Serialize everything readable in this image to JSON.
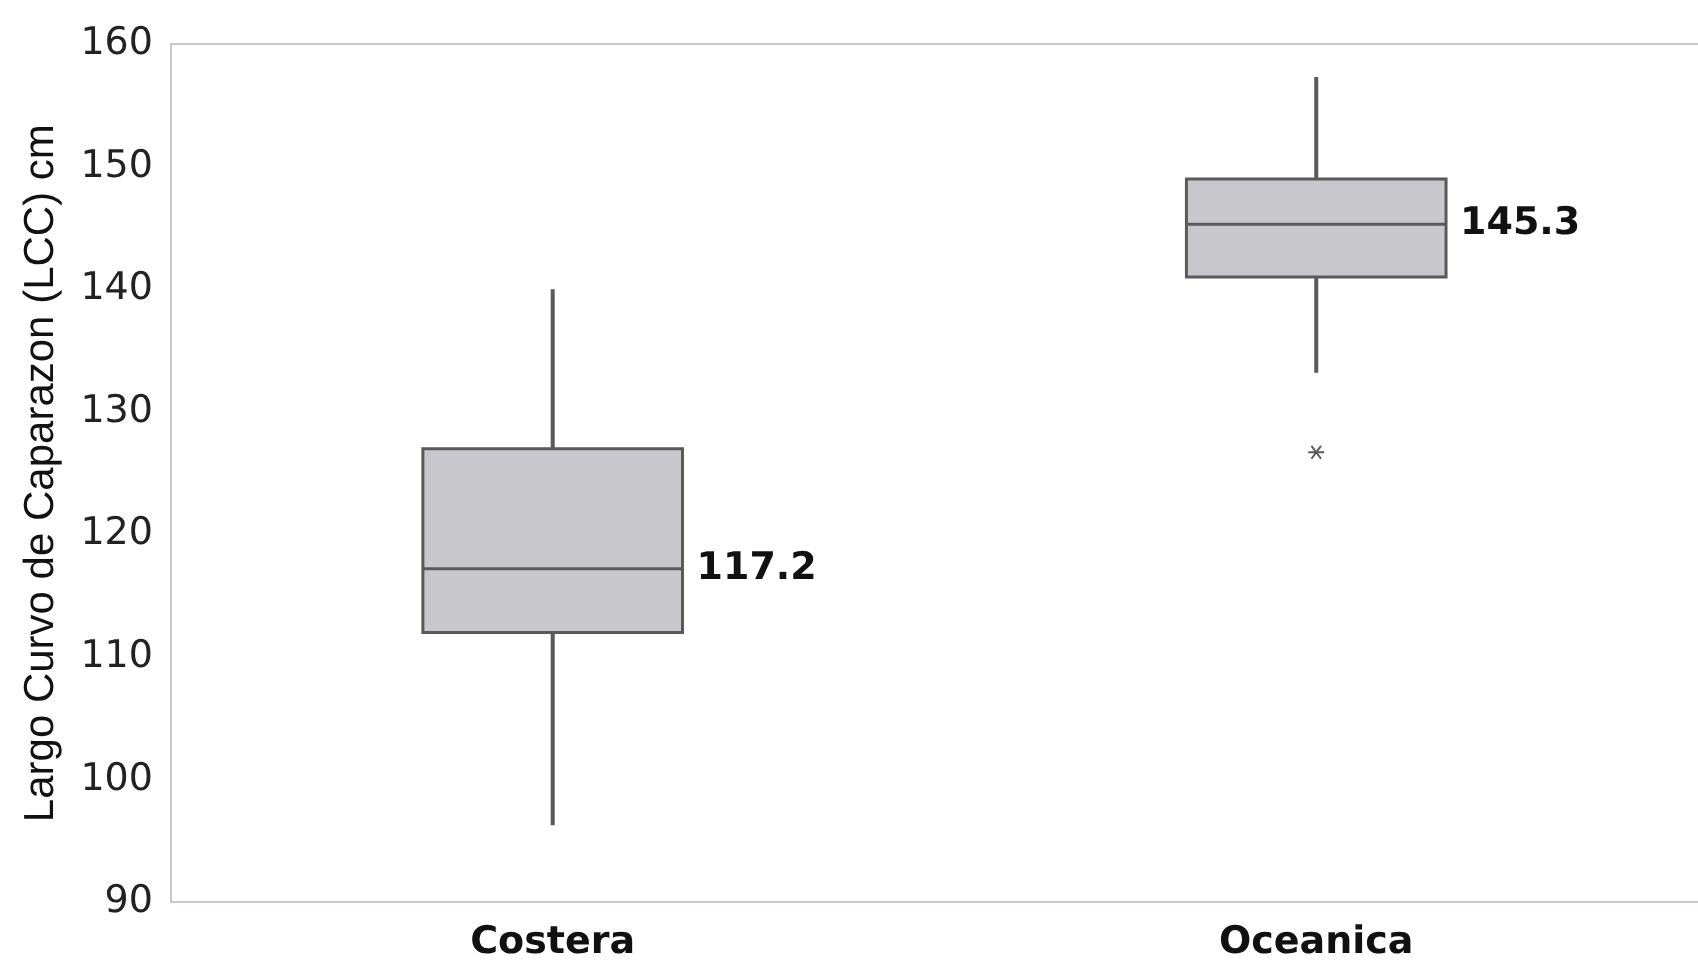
{
  "chart_data": {
    "type": "box",
    "ylabel": "Largo Curvo de Caparazon (LCC) cm",
    "categories": [
      "Costera",
      "Oceanica"
    ],
    "color": "#c8c8cc",
    "boxes": [
      {
        "low": 96.3,
        "q1": 112,
        "median": 117.2,
        "q3": 127,
        "high": 140
      },
      {
        "low": 133.2,
        "q1": 141,
        "median": 145.3,
        "q3": 149,
        "high": 157.3,
        "outliers": [
          126.7
        ]
      }
    ],
    "ylim": [
      90,
      160
    ],
    "yticks": [
      90,
      100,
      110,
      120,
      130,
      140,
      150,
      160
    ],
    "grid": false,
    "legend": false,
    "annotations": [
      "117.2",
      "145.3"
    ]
  }
}
